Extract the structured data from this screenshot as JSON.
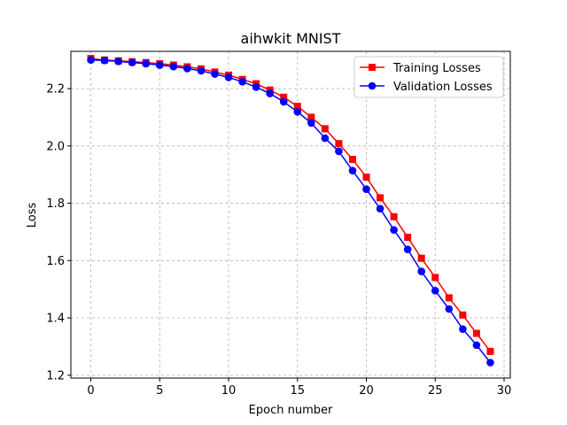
{
  "chart_data": {
    "type": "line",
    "title": "aihwkit MNIST",
    "xlabel": "Epoch number",
    "ylabel": "Loss",
    "xlim": [
      -1.45,
      30.45
    ],
    "ylim": [
      1.19,
      2.33
    ],
    "xticks": [
      0,
      5,
      10,
      15,
      20,
      25,
      30
    ],
    "yticks": [
      1.2,
      1.4,
      1.6,
      1.8,
      2.0,
      2.2
    ],
    "ytick_labels": [
      "1.2",
      "1.4",
      "1.6",
      "1.8",
      "2.0",
      "2.2"
    ],
    "grid": true,
    "legend_position": "top-right",
    "x": [
      0,
      1,
      2,
      3,
      4,
      5,
      6,
      7,
      8,
      9,
      10,
      11,
      12,
      13,
      14,
      15,
      16,
      17,
      18,
      19,
      20,
      21,
      22,
      23,
      24,
      25,
      26,
      27,
      28,
      29
    ],
    "series": [
      {
        "name": "Training Losses",
        "color": "#ff0000",
        "marker": "square",
        "values": [
          2.305,
          2.3,
          2.297,
          2.294,
          2.291,
          2.287,
          2.282,
          2.276,
          2.269,
          2.258,
          2.247,
          2.232,
          2.217,
          2.195,
          2.17,
          2.138,
          2.1,
          2.06,
          2.008,
          1.953,
          1.891,
          1.819,
          1.753,
          1.681,
          1.608,
          1.541,
          1.47,
          1.41,
          1.346,
          1.283
        ]
      },
      {
        "name": "Validation Losses",
        "color": "#0000ff",
        "marker": "circle",
        "values": [
          2.3,
          2.298,
          2.295,
          2.291,
          2.287,
          2.282,
          2.277,
          2.27,
          2.262,
          2.251,
          2.239,
          2.224,
          2.205,
          2.183,
          2.154,
          2.119,
          2.08,
          2.027,
          1.981,
          1.914,
          1.849,
          1.781,
          1.707,
          1.639,
          1.562,
          1.495,
          1.431,
          1.361,
          1.305,
          1.244
        ]
      }
    ]
  }
}
